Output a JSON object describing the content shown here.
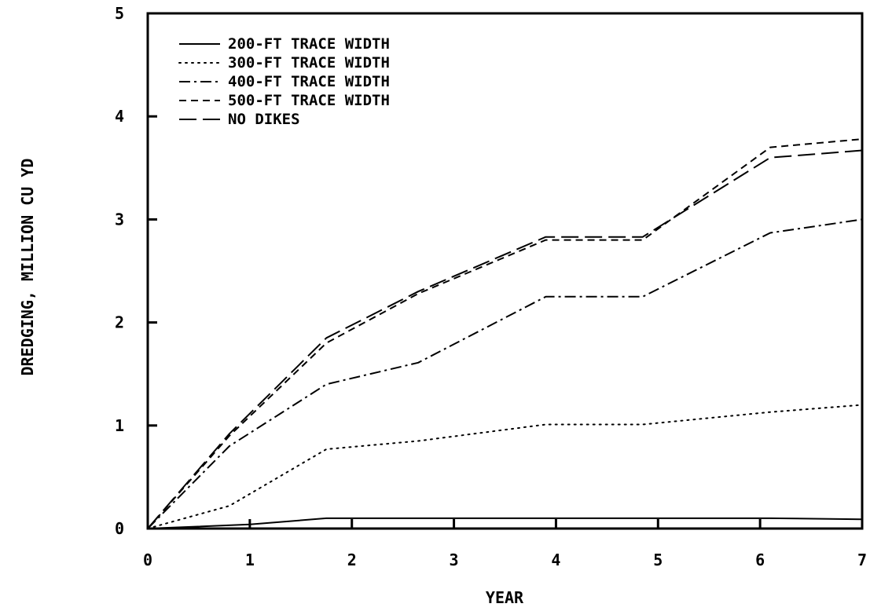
{
  "chart_data": {
    "type": "line",
    "title": "",
    "xlabel": "YEAR",
    "ylabel": "DREDGING, MILLION CU YD",
    "xlim": [
      0,
      7
    ],
    "ylim": [
      0,
      5
    ],
    "xticks": [
      "0",
      "1",
      "2",
      "3",
      "4",
      "5",
      "6",
      "7"
    ],
    "yticks": [
      "0",
      "1",
      "2",
      "3",
      "4",
      "5"
    ],
    "grid": false,
    "legend_position": "top-left",
    "series": [
      {
        "name": "200-FT TRACE WIDTH",
        "dash": "solid",
        "x": [
          0,
          1,
          1.75,
          2.65,
          3.9,
          4.85,
          6.1,
          7
        ],
        "y": [
          0,
          0.04,
          0.1,
          0.1,
          0.1,
          0.1,
          0.1,
          0.09
        ]
      },
      {
        "name": "300-FT TRACE WIDTH",
        "dash": "dotted",
        "x": [
          0,
          0.8,
          1.75,
          2.65,
          3.9,
          4.85,
          6.1,
          7
        ],
        "y": [
          0,
          0.22,
          0.77,
          0.85,
          1.01,
          1.01,
          1.13,
          1.2
        ]
      },
      {
        "name": "400-FT TRACE WIDTH",
        "dash": "dash-dot",
        "x": [
          0,
          0.8,
          1.75,
          2.65,
          3.9,
          4.85,
          6.1,
          7
        ],
        "y": [
          0,
          0.8,
          1.4,
          1.61,
          2.25,
          2.25,
          2.87,
          3.0
        ]
      },
      {
        "name": "500-FT TRACE WIDTH",
        "dash": "short-dash",
        "x": [
          0,
          0.8,
          1.75,
          2.65,
          3.9,
          4.85,
          6.1,
          7
        ],
        "y": [
          0,
          0.9,
          1.8,
          2.28,
          2.8,
          2.8,
          3.7,
          3.78
        ]
      },
      {
        "name": "NO DIKES",
        "dash": "long-dash",
        "x": [
          0,
          0.8,
          1.75,
          2.65,
          3.9,
          4.85,
          6.1,
          7
        ],
        "y": [
          0,
          0.92,
          1.85,
          2.3,
          2.83,
          2.83,
          3.6,
          3.67
        ]
      }
    ]
  }
}
